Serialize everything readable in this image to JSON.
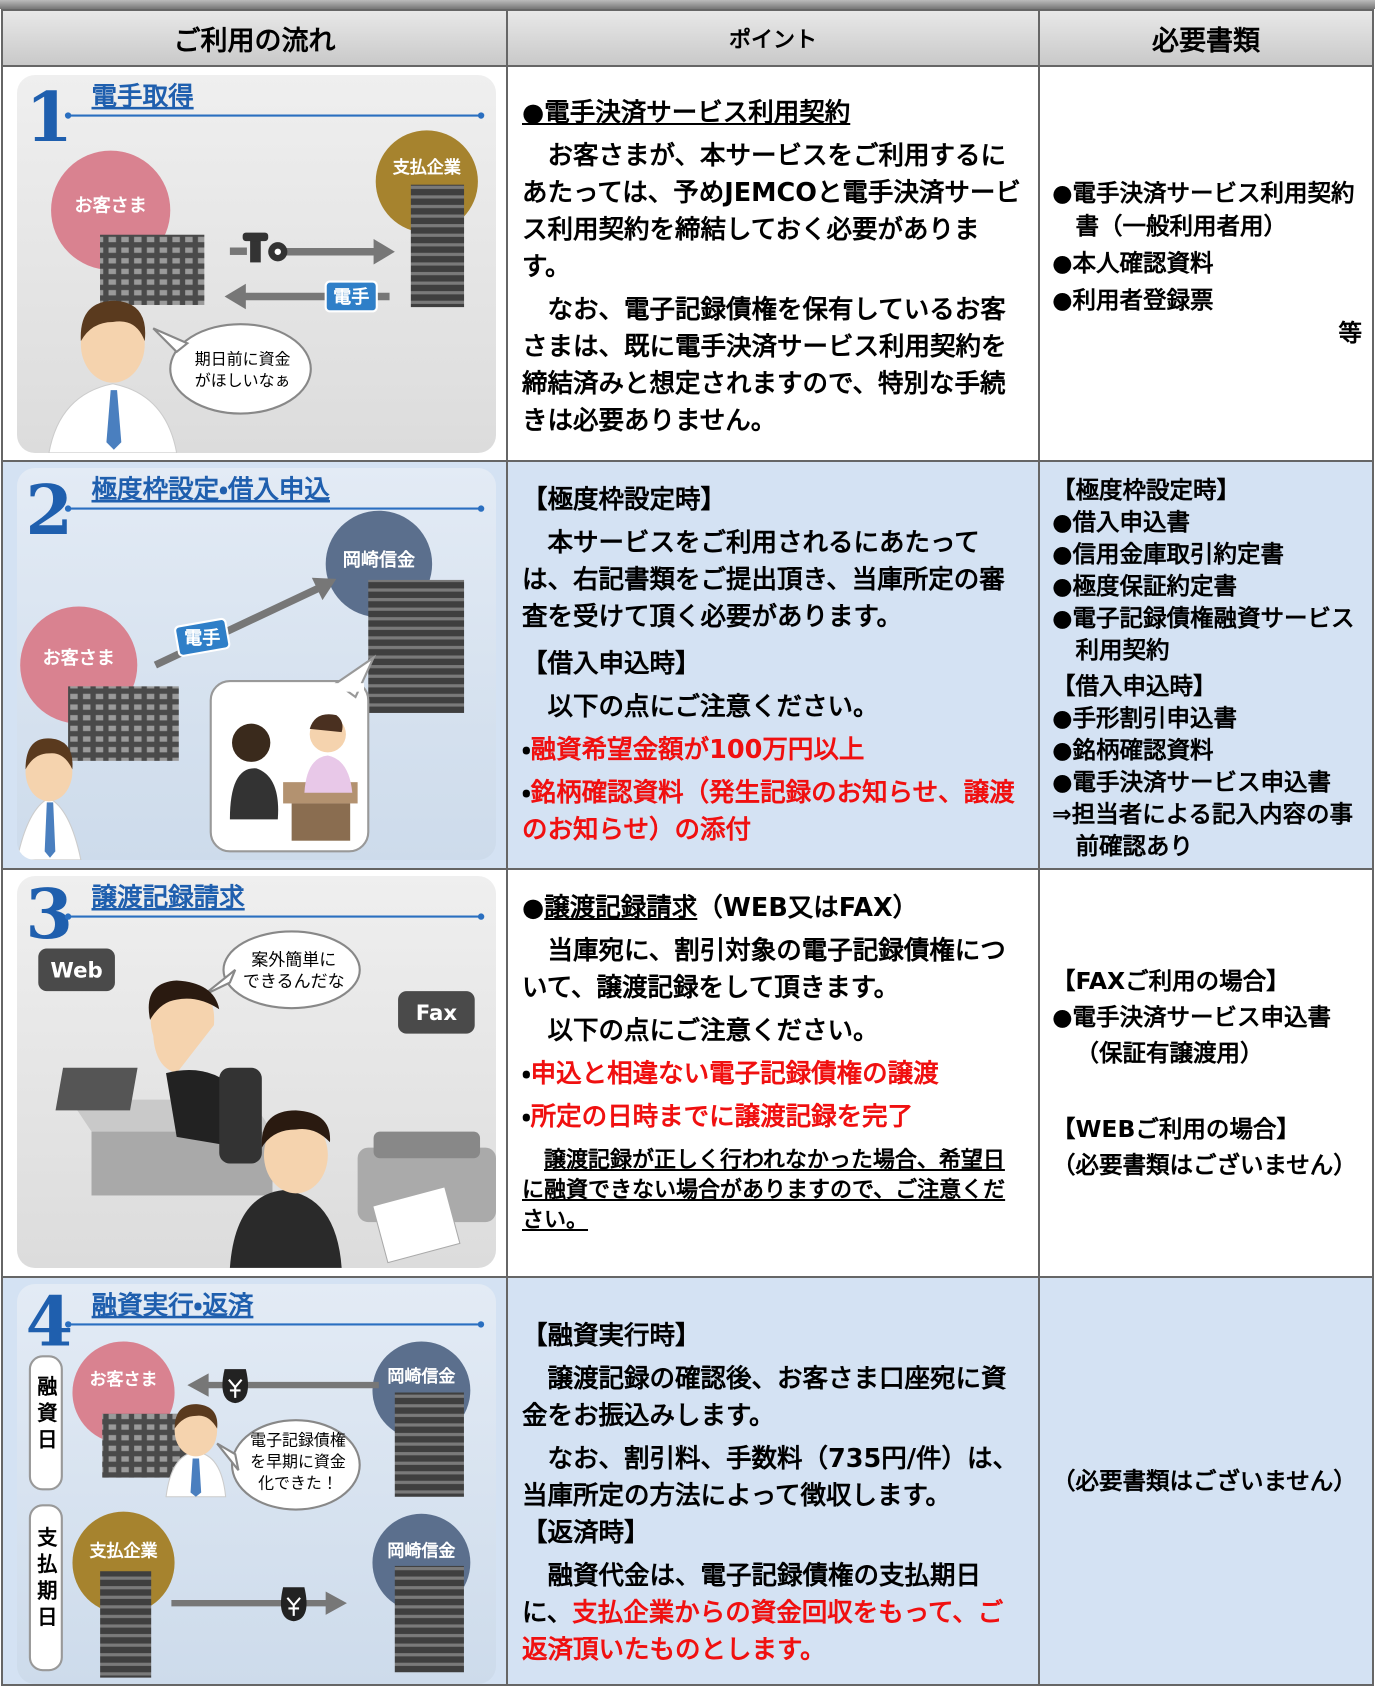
{
  "table": {
    "headers": [
      "ご利用の流れ",
      "ポイント",
      "必要書類"
    ],
    "rows": [
      {
        "step": "1",
        "title": "電手取得",
        "illustration": {
          "labels": [
            "お客さま",
            "支払企業",
            "電手"
          ],
          "speech": [
            "期日前に資金",
            "がほしいなぁ"
          ]
        },
        "points": [
          [
            "●電手決済サービス利用契約"
          ],
          [
            "お客さまが、本サービスをご利用するにあたっては、予めJEMCOと電手決済サービス利用契約を締結しておく必要があります。"
          ],
          [
            "なお、電子記録債権を保有しているお客さまは、既に電手決済サービス利用契約を締結済みと想定されますので、特別な手続きは必要ありません。"
          ]
        ],
        "documents": [
          "●電手決済サービス利用契約書（一般利用者用）",
          "●本人確認資料",
          "●利用者登録票",
          "等"
        ]
      },
      {
        "step": "2",
        "title": "極度枠設定・借入申込",
        "illustration": {
          "labels": [
            "岡崎信金",
            "電手",
            "お客さま"
          ]
        },
        "points": [
          [
            "【極度枠設定時】"
          ],
          [
            "本サービスをご利用されるにあたっては、右記書類をご提出頂き、当庫所定の審査を受けて頂く必要があります。"
          ],
          [
            "【借入申込時】"
          ],
          [
            "以下の点にご注意ください。"
          ],
          [
            "・",
            "融資希望金額が100万円以上"
          ],
          [
            "・",
            "銘柄確認資料（発生記録のお知らせ、譲渡のお知らせ）の添付"
          ]
        ],
        "documents": [
          "【極度枠設定時】",
          "●借入申込書",
          "●信用金庫取引約定書",
          "●極度保証約定書",
          "●電子記録債権融資サービス利用契約",
          "【借入申込時】",
          "●手形割引申込書",
          "●銘柄確認資料",
          "●電手決済サービス申込書",
          "⇒担当者による記入内容の事前確認あり"
        ]
      },
      {
        "step": "3",
        "title": "譲渡記録請求",
        "illustration": {
          "labels": [
            "Web",
            "Fax"
          ],
          "speech": [
            "案外簡単に",
            "できるんだな"
          ]
        },
        "points": [
          [
            "●",
            "譲渡記録請求",
            "（WEB又はFAX）"
          ],
          [
            "当庫宛に、割引対象の電子記録債権について、譲渡記録をして頂きます。"
          ],
          [
            "以下の点にご注意ください。"
          ],
          [
            "・",
            "申込と相違ない電子記録債権の譲渡"
          ],
          [
            "・",
            "所定の日時までに譲渡記録を完了"
          ],
          [
            "譲渡記録が正しく行われなかった場合、希望日に融資できない場合がありますので、ご注意ください。"
          ]
        ],
        "documents": [
          "【FAXご利用の場合】",
          "●電手決済サービス申込書（保証有譲渡用）",
          "【WEBご利用の場合】",
          "（必要書類はございません）"
        ]
      },
      {
        "step": "4",
        "title": "融資実行・返済",
        "illustration": {
          "labels": [
            "融資日",
            "お客さま",
            "岡崎信金",
            "支払期日",
            "支払企業",
            "岡崎信金"
          ],
          "speech": [
            "電子記録債権",
            "を早期に資金",
            "化できた！"
          ]
        },
        "points": [
          [
            "【融資実行時】"
          ],
          [
            "譲渡記録の確認後、お客さま口座宛に資金をお振込みします。"
          ],
          [
            "なお、割引料、手数料（735円/件）は、当庫所定の方法によって徴収します。"
          ],
          [
            "【返済時】"
          ],
          [
            "融資代金は、電子記録債権の支払期日に、",
            "支払企業からの資金回収をもって、ご返済頂いたものとします。"
          ]
        ],
        "documents": [
          "（必要書類はございません）"
        ]
      }
    ]
  }
}
